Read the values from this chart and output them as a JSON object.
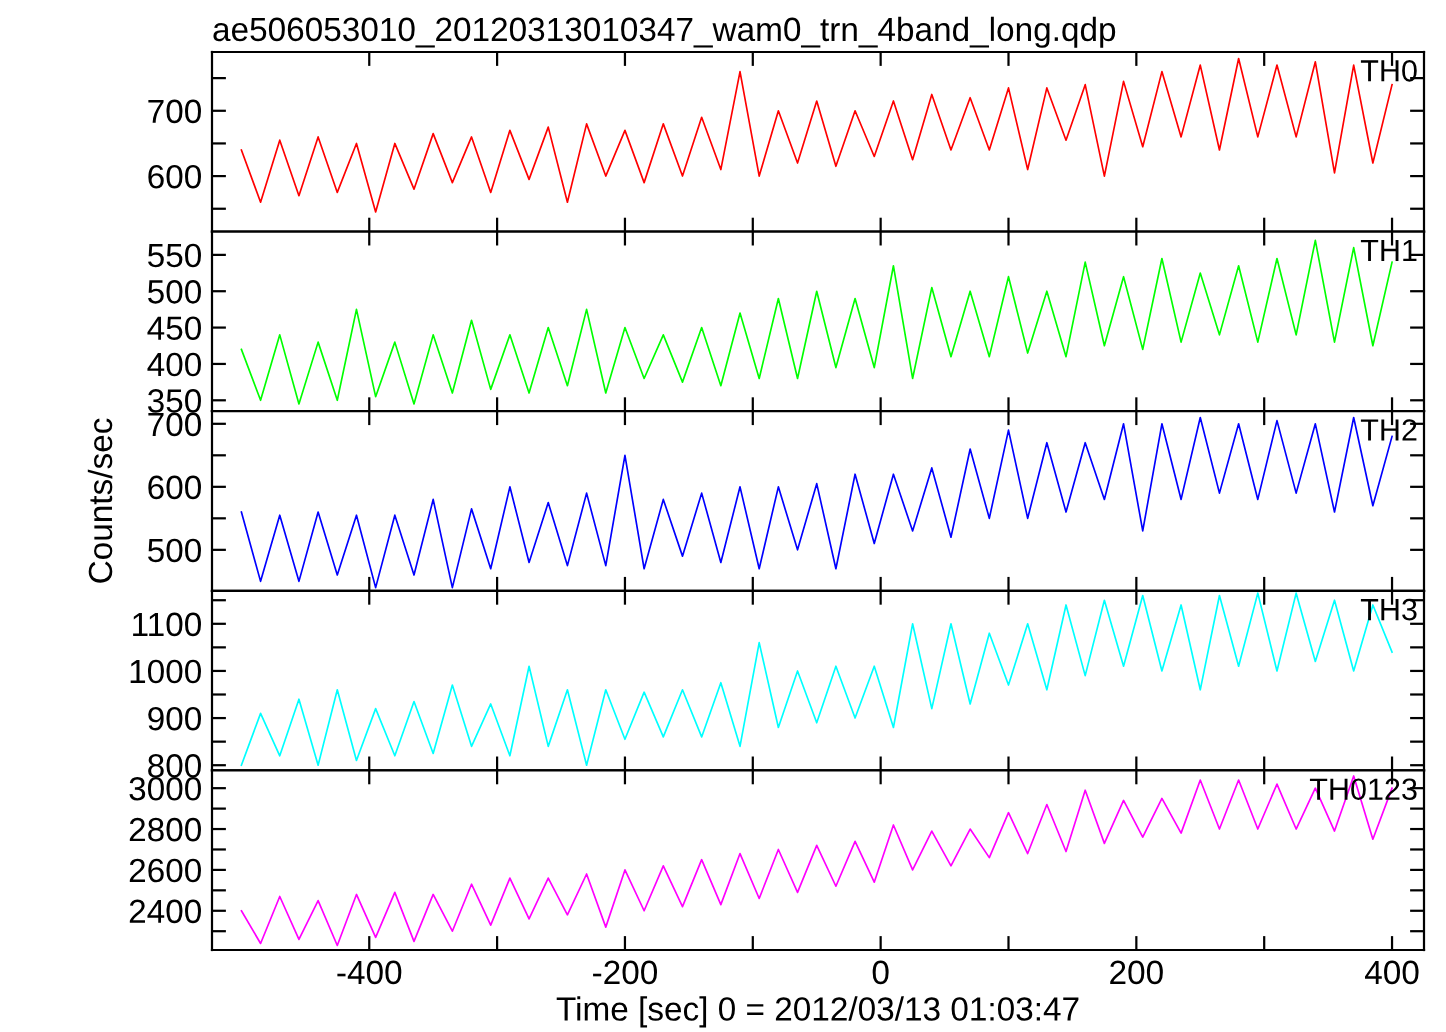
{
  "chart_data": [
    {
      "type": "line",
      "title": "ae506053010_20120313010347_wam0_trn_4band_long.qdp",
      "tick_labels": "y",
      "x": [
        -500,
        -485,
        -470,
        -455,
        -440,
        -425,
        -410,
        -395,
        -380,
        -365,
        -350,
        -335,
        -320,
        -305,
        -290,
        -275,
        -260,
        -245,
        -230,
        -215,
        -200,
        -185,
        -170,
        -155,
        -140,
        -125,
        -110,
        -95,
        -80,
        -65,
        -50,
        -35,
        -20,
        -5,
        10,
        25,
        40,
        55,
        70,
        85,
        100,
        115,
        130,
        145,
        160,
        175,
        190,
        205,
        220,
        235,
        250,
        265,
        280,
        295,
        310,
        325,
        340,
        355,
        370,
        385,
        400
      ],
      "xlim": [
        -523,
        425
      ],
      "xticks": [
        {
          "value": -400,
          "label": null
        },
        {
          "value": -300,
          "label": null
        },
        {
          "value": -200,
          "label": null
        },
        {
          "value": -100,
          "label": null
        },
        {
          "value": 0,
          "label": null
        },
        {
          "value": 100,
          "label": null
        },
        {
          "value": 200,
          "label": null
        },
        {
          "value": 300,
          "label": null
        },
        {
          "value": 400,
          "label": null
        }
      ],
      "ylim": [
        515,
        790
      ],
      "yticks": [
        {
          "value": 550,
          "label": null
        },
        600,
        {
          "value": 650,
          "label": null
        },
        700,
        {
          "value": 750,
          "label": null
        }
      ],
      "series": [
        {
          "name": "TH0",
          "color": "#ff0000",
          "values": [
            640,
            560,
            655,
            570,
            660,
            575,
            650,
            545,
            650,
            580,
            665,
            590,
            660,
            575,
            670,
            595,
            675,
            560,
            680,
            600,
            670,
            590,
            680,
            600,
            690,
            610,
            760,
            600,
            700,
            620,
            715,
            615,
            700,
            630,
            715,
            625,
            725,
            640,
            720,
            640,
            735,
            610,
            735,
            655,
            740,
            600,
            745,
            645,
            760,
            660,
            770,
            640,
            780,
            660,
            770,
            660,
            775,
            605,
            770,
            620,
            740
          ]
        }
      ]
    },
    {
      "type": "line",
      "tick_labels": "y",
      "x": [
        -500,
        -485,
        -470,
        -455,
        -440,
        -425,
        -410,
        -395,
        -380,
        -365,
        -350,
        -335,
        -320,
        -305,
        -290,
        -275,
        -260,
        -245,
        -230,
        -215,
        -200,
        -185,
        -170,
        -155,
        -140,
        -125,
        -110,
        -95,
        -80,
        -65,
        -50,
        -35,
        -20,
        -5,
        10,
        25,
        40,
        55,
        70,
        85,
        100,
        115,
        130,
        145,
        160,
        175,
        190,
        205,
        220,
        235,
        250,
        265,
        280,
        295,
        310,
        325,
        340,
        355,
        370,
        385,
        400
      ],
      "xlim": [
        -523,
        425
      ],
      "xticks": [
        {
          "value": -400,
          "label": null
        },
        {
          "value": -300,
          "label": null
        },
        {
          "value": -200,
          "label": null
        },
        {
          "value": -100,
          "label": null
        },
        {
          "value": 0,
          "label": null
        },
        {
          "value": 100,
          "label": null
        },
        {
          "value": 200,
          "label": null
        },
        {
          "value": 300,
          "label": null
        },
        {
          "value": 400,
          "label": null
        }
      ],
      "ylim": [
        335,
        582
      ],
      "yticks": [
        350,
        400,
        450,
        500,
        550
      ],
      "series": [
        {
          "name": "TH1",
          "color": "#00ff00",
          "values": [
            420,
            350,
            440,
            345,
            430,
            350,
            475,
            355,
            430,
            345,
            440,
            360,
            460,
            365,
            440,
            360,
            450,
            370,
            475,
            360,
            450,
            380,
            440,
            375,
            450,
            370,
            470,
            380,
            490,
            380,
            500,
            395,
            490,
            395,
            535,
            380,
            505,
            410,
            500,
            410,
            520,
            415,
            500,
            410,
            540,
            425,
            520,
            420,
            545,
            430,
            525,
            440,
            535,
            430,
            545,
            440,
            570,
            430,
            560,
            425,
            540
          ]
        }
      ]
    },
    {
      "type": "line",
      "tick_labels": "y",
      "ylabel": "Counts/sec",
      "x": [
        -500,
        -485,
        -470,
        -455,
        -440,
        -425,
        -410,
        -395,
        -380,
        -365,
        -350,
        -335,
        -320,
        -305,
        -290,
        -275,
        -260,
        -245,
        -230,
        -215,
        -200,
        -185,
        -170,
        -155,
        -140,
        -125,
        -110,
        -95,
        -80,
        -65,
        -50,
        -35,
        -20,
        -5,
        10,
        25,
        40,
        55,
        70,
        85,
        100,
        115,
        130,
        145,
        160,
        175,
        190,
        205,
        220,
        235,
        250,
        265,
        280,
        295,
        310,
        325,
        340,
        355,
        370,
        385,
        400
      ],
      "xlim": [
        -523,
        425
      ],
      "xticks": [
        {
          "value": -400,
          "label": null
        },
        {
          "value": -300,
          "label": null
        },
        {
          "value": -200,
          "label": null
        },
        {
          "value": -100,
          "label": null
        },
        {
          "value": 0,
          "label": null
        },
        {
          "value": 100,
          "label": null
        },
        {
          "value": 200,
          "label": null
        },
        {
          "value": 300,
          "label": null
        },
        {
          "value": 400,
          "label": null
        }
      ],
      "ylim": [
        435,
        720
      ],
      "yticks": [
        500,
        {
          "value": 550,
          "label": null
        },
        600,
        {
          "value": 650,
          "label": null
        },
        700
      ],
      "series": [
        {
          "name": "TH2",
          "color": "#0000ff",
          "values": [
            560,
            450,
            555,
            450,
            560,
            460,
            555,
            440,
            555,
            460,
            580,
            440,
            565,
            470,
            600,
            480,
            575,
            475,
            590,
            475,
            650,
            470,
            580,
            490,
            590,
            480,
            600,
            470,
            600,
            500,
            605,
            470,
            620,
            510,
            620,
            530,
            630,
            520,
            660,
            550,
            690,
            550,
            670,
            560,
            670,
            580,
            700,
            530,
            700,
            580,
            710,
            590,
            700,
            580,
            705,
            590,
            700,
            560,
            710,
            570,
            680
          ]
        }
      ]
    },
    {
      "type": "line",
      "tick_labels": "y",
      "x": [
        -500,
        -485,
        -470,
        -455,
        -440,
        -425,
        -410,
        -395,
        -380,
        -365,
        -350,
        -335,
        -320,
        -305,
        -290,
        -275,
        -260,
        -245,
        -230,
        -215,
        -200,
        -185,
        -170,
        -155,
        -140,
        -125,
        -110,
        -95,
        -80,
        -65,
        -50,
        -35,
        -20,
        -5,
        10,
        25,
        40,
        55,
        70,
        85,
        100,
        115,
        130,
        145,
        160,
        175,
        190,
        205,
        220,
        235,
        250,
        265,
        280,
        295,
        310,
        325,
        340,
        355,
        370,
        385,
        400
      ],
      "xlim": [
        -523,
        425
      ],
      "xticks": [
        {
          "value": -400,
          "label": null
        },
        {
          "value": -300,
          "label": null
        },
        {
          "value": -200,
          "label": null
        },
        {
          "value": -100,
          "label": null
        },
        {
          "value": 0,
          "label": null
        },
        {
          "value": 100,
          "label": null
        },
        {
          "value": 200,
          "label": null
        },
        {
          "value": 300,
          "label": null
        },
        {
          "value": 400,
          "label": null
        }
      ],
      "ylim": [
        789,
        1170
      ],
      "yticks": [
        800,
        {
          "value": 850,
          "label": null
        },
        900,
        {
          "value": 950,
          "label": null
        },
        1000,
        {
          "value": 1050,
          "label": null
        },
        1100,
        {
          "value": 1150,
          "label": null
        }
      ],
      "series": [
        {
          "name": "TH3",
          "color": "#00ffff",
          "values": [
            800,
            910,
            820,
            940,
            800,
            960,
            810,
            920,
            820,
            935,
            825,
            970,
            840,
            930,
            820,
            1010,
            840,
            960,
            800,
            960,
            855,
            955,
            860,
            960,
            860,
            975,
            840,
            1060,
            880,
            1000,
            890,
            1010,
            900,
            1010,
            880,
            1100,
            920,
            1100,
            930,
            1080,
            970,
            1100,
            960,
            1140,
            990,
            1150,
            1010,
            1160,
            1000,
            1140,
            960,
            1160,
            1010,
            1165,
            1000,
            1165,
            1020,
            1150,
            1000,
            1140,
            1040
          ]
        }
      ]
    },
    {
      "type": "line",
      "xlabel": "Time [sec] 0 = 2012/03/13 01:03:47",
      "x": [
        -500,
        -485,
        -470,
        -455,
        -440,
        -425,
        -410,
        -395,
        -380,
        -365,
        -350,
        -335,
        -320,
        -305,
        -290,
        -275,
        -260,
        -245,
        -230,
        -215,
        -200,
        -185,
        -170,
        -155,
        -140,
        -125,
        -110,
        -95,
        -80,
        -65,
        -50,
        -35,
        -20,
        -5,
        10,
        25,
        40,
        55,
        70,
        85,
        100,
        115,
        130,
        145,
        160,
        175,
        190,
        205,
        220,
        235,
        250,
        265,
        280,
        295,
        310,
        325,
        340,
        355,
        370,
        385,
        400
      ],
      "xlim": [
        -523,
        425
      ],
      "xticks": [
        -400,
        {
          "value": -300,
          "label": null
        },
        -200,
        {
          "value": -100,
          "label": null
        },
        0,
        {
          "value": 100,
          "label": null
        },
        200,
        {
          "value": 300,
          "label": null
        },
        400
      ],
      "ylim": [
        2208,
        3087
      ],
      "yticks": [
        {
          "value": 2300,
          "label": null
        },
        2400,
        {
          "value": 2500,
          "label": null
        },
        2600,
        {
          "value": 2700,
          "label": null
        },
        2800,
        {
          "value": 2900,
          "label": null
        },
        3000
      ],
      "series": [
        {
          "name": "TH0123",
          "color": "#ff00ff",
          "values": [
            2400,
            2240,
            2470,
            2260,
            2450,
            2230,
            2480,
            2270,
            2490,
            2250,
            2480,
            2300,
            2530,
            2330,
            2560,
            2360,
            2560,
            2380,
            2580,
            2320,
            2600,
            2400,
            2620,
            2420,
            2650,
            2430,
            2680,
            2460,
            2700,
            2490,
            2720,
            2520,
            2740,
            2540,
            2820,
            2600,
            2790,
            2620,
            2800,
            2660,
            2880,
            2680,
            2920,
            2690,
            2990,
            2730,
            2940,
            2760,
            2950,
            2780,
            3040,
            2800,
            3040,
            2800,
            3020,
            2800,
            3000,
            2790,
            3060,
            2750,
            3000
          ]
        }
      ]
    }
  ]
}
